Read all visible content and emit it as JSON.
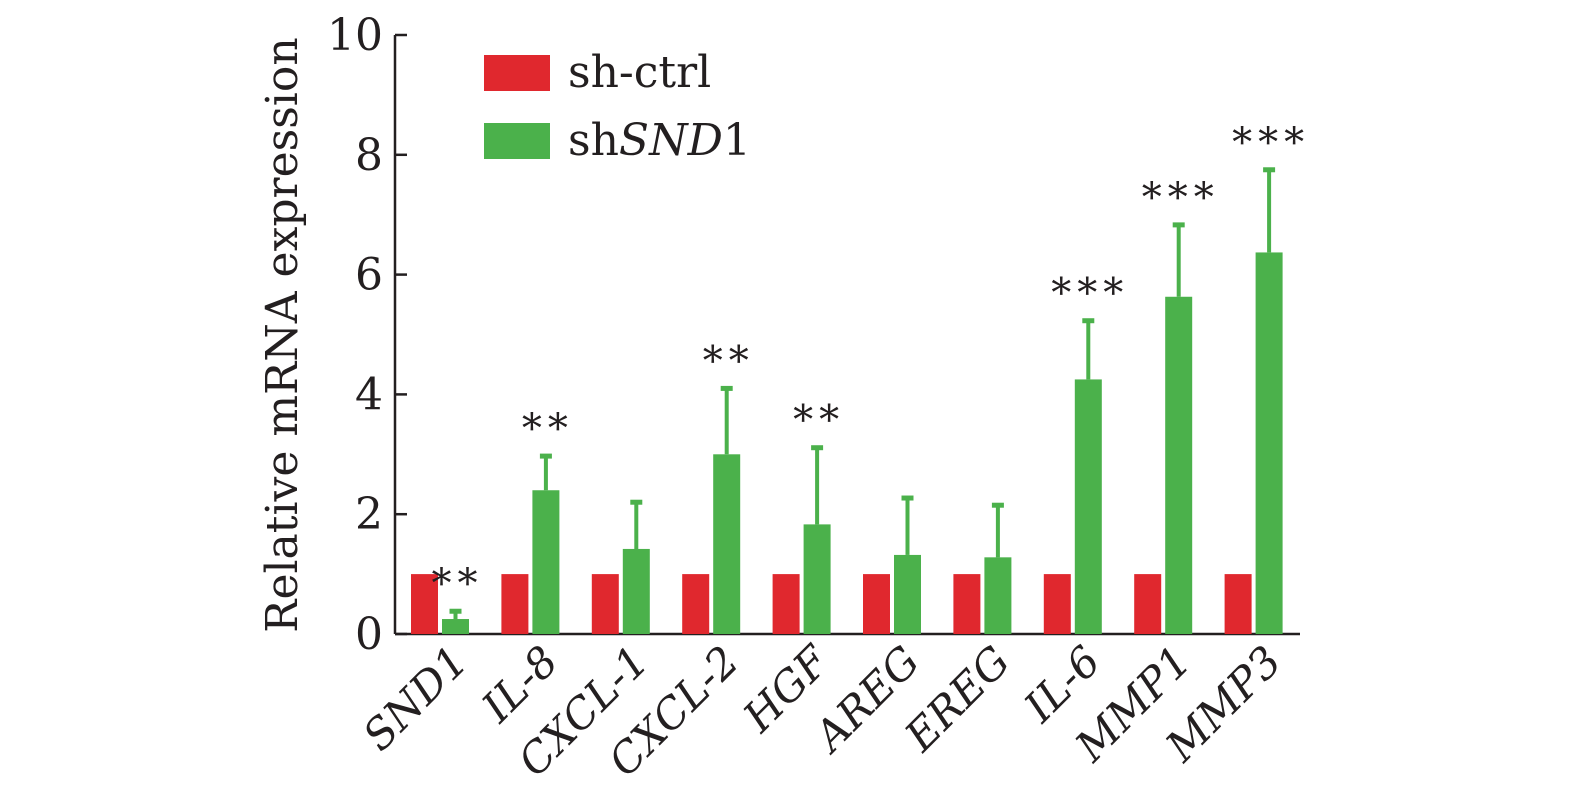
{
  "chart_data": {
    "type": "bar",
    "title": "",
    "xlabel": "",
    "ylabel": "Relative mRNA expression",
    "ylim": [
      0,
      10
    ],
    "yticks": [
      0,
      2,
      4,
      6,
      8,
      10
    ],
    "categories": [
      "SND1",
      "IL-8",
      "CXCL-1",
      "CXCL-2",
      "HGF",
      "AREG",
      "EREG",
      "IL-6",
      "MMP1",
      "MMP3"
    ],
    "series": [
      {
        "name": "sh-ctrl",
        "color": "#e0282e",
        "values": [
          1.0,
          1.0,
          1.0,
          1.0,
          1.0,
          1.0,
          1.0,
          1.0,
          1.0,
          1.0
        ]
      },
      {
        "name": "shSND1",
        "color": "#4bb14b",
        "values": [
          0.25,
          2.4,
          1.42,
          3.0,
          1.83,
          1.32,
          1.28,
          4.25,
          5.63,
          6.37
        ],
        "errors": [
          0.13,
          0.57,
          0.78,
          1.1,
          1.28,
          0.95,
          0.87,
          0.98,
          1.2,
          1.38
        ]
      }
    ],
    "significance": [
      "**",
      "**",
      "",
      "**",
      "**",
      "",
      "",
      "***",
      "***",
      "***"
    ],
    "legend": {
      "position": "top-left",
      "entries": [
        {
          "prefix": "sh-ctrl",
          "italic": "",
          "suffix": ""
        },
        {
          "prefix": "sh",
          "italic": "SND",
          "suffix": "1"
        }
      ]
    },
    "grid": false
  }
}
